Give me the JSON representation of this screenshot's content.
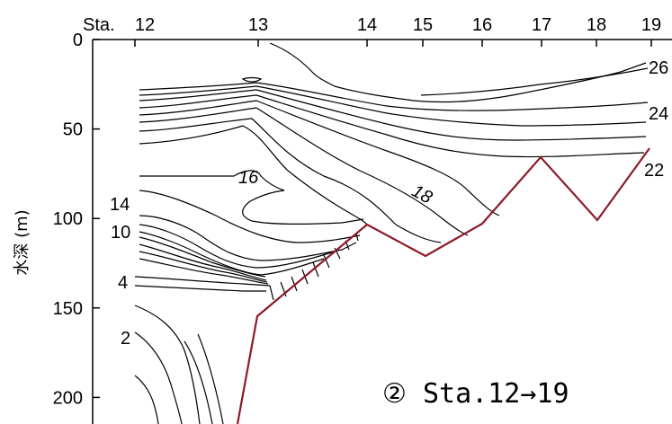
{
  "chart_data": {
    "type": "contour",
    "title": "",
    "ylabel": "水深 (m)",
    "xlabel": "",
    "y_ticks": [
      "0",
      "50",
      "100",
      "150",
      "200"
    ],
    "y_tick_values": [
      0,
      50,
      100,
      150,
      200
    ],
    "ylim": [
      0,
      210
    ],
    "y_inverted": true,
    "x_station_prefix": "Sta.",
    "stations": [
      "12",
      "13",
      "14",
      "15",
      "16",
      "17",
      "18",
      "19"
    ],
    "annotation": "② Sta.12→19",
    "contour_labels": [
      {
        "text": "26",
        "value": 26
      },
      {
        "text": "24",
        "value": 24
      },
      {
        "text": "22",
        "value": 22
      },
      {
        "text": "18",
        "value": 18,
        "italic": true
      },
      {
        "text": "16",
        "value": 16,
        "italic": true
      },
      {
        "text": "14",
        "value": 14
      },
      {
        "text": "10",
        "value": 10
      },
      {
        "text": "4",
        "value": 4
      },
      {
        "text": "2",
        "value": 2
      }
    ],
    "bottom_profile": {
      "name": "",
      "color": "#8b1a2a"
    },
    "contour_color": "#000000"
  }
}
